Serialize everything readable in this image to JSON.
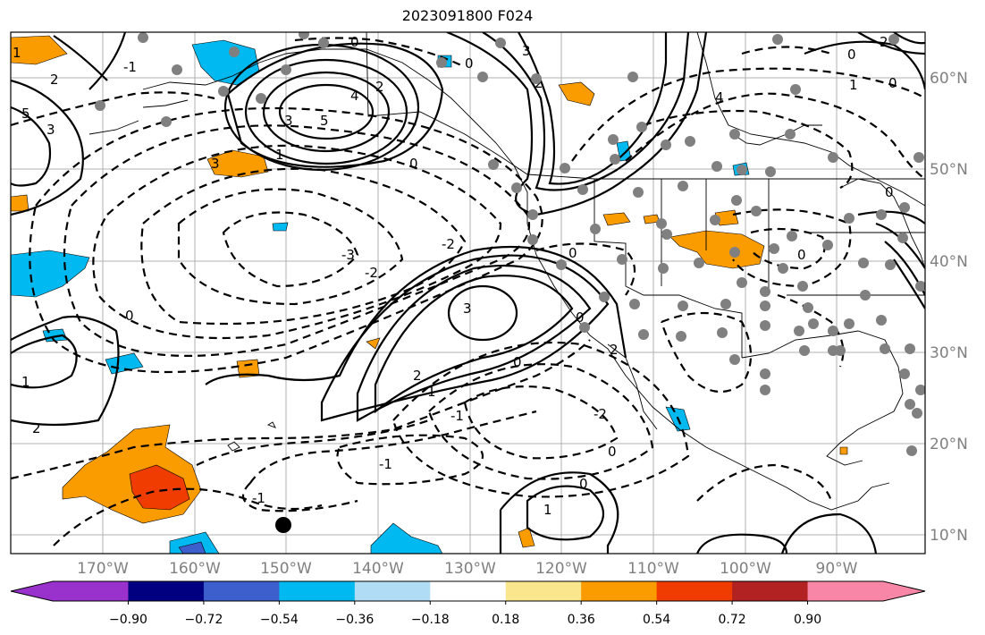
{
  "title": "2023091800 F024",
  "map": {
    "lon_labels": [
      "170°W",
      "160°W",
      "150°W",
      "140°W",
      "130°W",
      "120°W",
      "110°W",
      "100°W",
      "90°W"
    ],
    "lat_labels": [
      "60°N",
      "50°N",
      "40°N",
      "30°N",
      "20°N",
      "10°N"
    ],
    "contour_labels": [
      "0",
      "1",
      "2",
      "3",
      "4",
      "5",
      "-1",
      "-2",
      "-3"
    ],
    "colors": {
      "land_outline": "#000000",
      "grid": "#b0b0b0",
      "station": "#808080"
    }
  },
  "colorbar": {
    "labels": [
      "−0.90",
      "−0.72",
      "−0.54",
      "−0.36",
      "−0.18",
      "0.18",
      "0.36",
      "0.54",
      "0.72",
      "0.90"
    ],
    "colors": [
      "#9932cc",
      "#000080",
      "#3c5fcd",
      "#00b9f0",
      "#b0dcf5",
      "#ffffff",
      "#fae68c",
      "#fa9b00",
      "#f03c00",
      "#b22222",
      "#f886a6"
    ]
  }
}
